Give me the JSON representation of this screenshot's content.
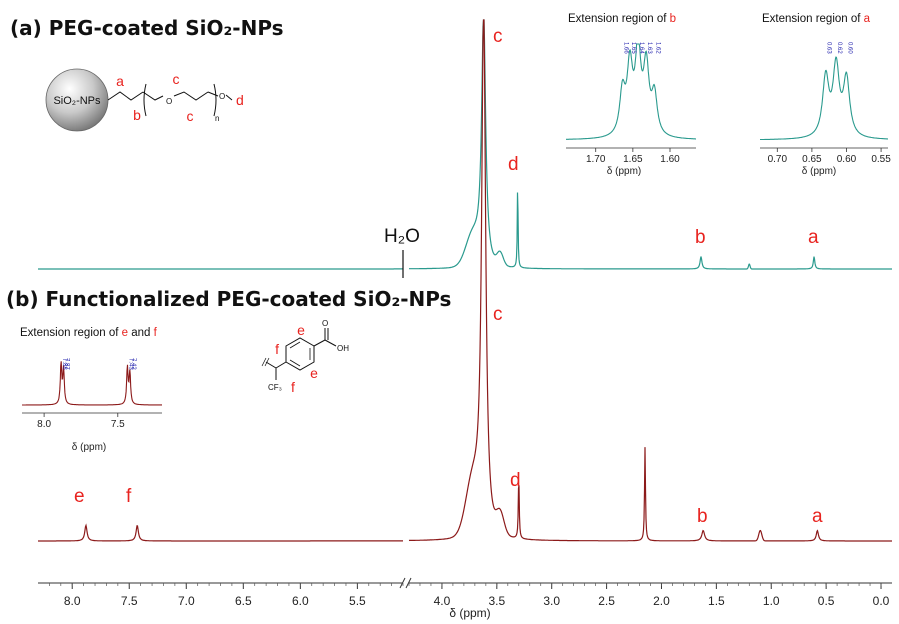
{
  "chart_data": [
    {
      "type": "line",
      "title": "(a) PEG-coated SiO₂-NPs",
      "color": "#2a9a8e",
      "xlabel": "δ (ppm)",
      "xlim": [
        8.3,
        -0.1
      ],
      "axis_break": [
        5.1,
        4.3
      ],
      "x_ticks": [
        "8.0",
        "7.5",
        "7.0",
        "6.5",
        "6.0",
        "5.5",
        "4.0",
        "3.5",
        "3.0",
        "2.5",
        "2.0",
        "1.5",
        "1.0",
        "0.5",
        "0.0"
      ],
      "water_label": "H₂O",
      "peaks": [
        {
          "label": "c",
          "ppm": 3.62,
          "rel_height": 1.0
        },
        {
          "label": "d",
          "ppm": 3.31,
          "rel_height": 0.35
        },
        {
          "label": "b",
          "ppm": 1.64,
          "rel_height": 0.05
        },
        {
          "label": "a",
          "ppm": 0.61,
          "rel_height": 0.05
        }
      ],
      "structure": {
        "sphere_label": "SiO₂-NPs",
        "atom_labels": [
          "a",
          "b",
          "c",
          "c",
          "d"
        ],
        "subscript": "n"
      },
      "insets": [
        {
          "title_prefix": "Extension region of ",
          "title_key": "b",
          "xlabel": "δ (ppm)",
          "x_ticks": [
            "1.70",
            "1.65",
            "1.60"
          ],
          "xlim": [
            1.74,
            1.565
          ],
          "peak_annotations": [
            "1.66",
            "1.65",
            "1.64",
            "1.63",
            "1.62"
          ],
          "peaks_ppm": [
            1.664,
            1.654,
            1.643,
            1.632,
            1.621
          ],
          "peaks_rel": [
            0.45,
            0.7,
            0.88,
            0.7,
            0.42
          ]
        },
        {
          "title_prefix": "Extension region of ",
          "title_key": "a",
          "xlabel": "δ (ppm)",
          "x_ticks": [
            "0.70",
            "0.65",
            "0.60",
            "0.55"
          ],
          "xlim": [
            0.725,
            0.54
          ],
          "peak_annotations": [
            "0.63",
            "0.62",
            "0.60"
          ],
          "peaks_ppm": [
            0.63,
            0.615,
            0.6
          ],
          "peaks_rel": [
            0.62,
            0.72,
            0.6
          ]
        }
      ]
    },
    {
      "type": "line",
      "title": "(b) Functionalized PEG-coated SiO₂-NPs",
      "color": "#8c1a1a",
      "xlabel": "δ (ppm)",
      "xlim": [
        8.3,
        -0.1
      ],
      "peaks": [
        {
          "label": "e",
          "ppm": 7.88,
          "rel_height": 0.03
        },
        {
          "label": "f",
          "ppm": 7.43,
          "rel_height": 0.03
        },
        {
          "label": "c",
          "ppm": 3.62,
          "rel_height": 1.0
        },
        {
          "label": "d",
          "ppm": 3.3,
          "rel_height": 0.12
        },
        {
          "label": "",
          "ppm": 2.15,
          "rel_height": 0.18
        },
        {
          "label": "b",
          "ppm": 1.62,
          "rel_height": 0.02
        },
        {
          "label": "a",
          "ppm": 0.58,
          "rel_height": 0.02
        }
      ],
      "structure": {
        "atom_labels": [
          "f",
          "e",
          "f",
          "e"
        ],
        "groups": [
          "OH",
          "O",
          "CF₃"
        ]
      },
      "insets": [
        {
          "title_prefix": "Extension region of ",
          "title_key1": "e",
          "title_mid": " and ",
          "title_key2": "f",
          "xlabel": "δ (ppm)",
          "x_ticks": [
            "8.0",
            "7.5"
          ],
          "xlim": [
            8.15,
            7.2
          ],
          "peak_annotations": [
            "7.88",
            "7.87",
            "7.43",
            "7.42"
          ],
          "peaks_ppm": [
            7.885,
            7.868,
            7.435,
            7.418
          ],
          "peaks_rel": [
            0.9,
            0.78,
            0.82,
            0.7
          ]
        }
      ]
    }
  ]
}
